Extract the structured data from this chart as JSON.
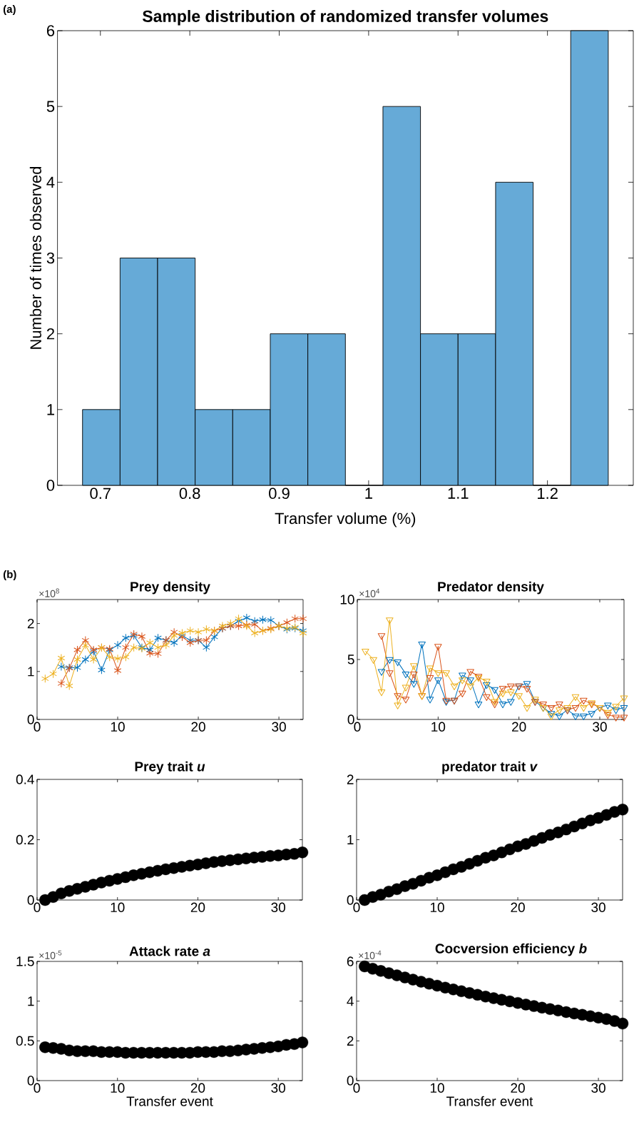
{
  "chart_data": [
    {
      "type": "histogram",
      "title": "Sample distribution of randomized transfer volumes",
      "xlabel": "Transfer volume (%)",
      "ylabel": "Number of times observed",
      "annotations": [
        "(a)"
      ],
      "color": "#66aad7",
      "bins": [
        0.68,
        0.722,
        0.764,
        0.806,
        0.848,
        0.89,
        0.932,
        0.974,
        1.016,
        1.058,
        1.1,
        1.142,
        1.184,
        1.226,
        1.268
      ],
      "values": [
        1,
        3,
        3,
        1,
        1,
        2,
        2,
        0,
        5,
        2,
        2,
        4,
        0,
        6
      ],
      "xlim": [
        0.652,
        1.296
      ],
      "ylim": [
        0,
        6
      ],
      "xticks": [
        0.7,
        0.8,
        0.9,
        1,
        1.1,
        1.2
      ],
      "yticks": [
        0,
        1,
        2,
        3,
        4,
        5,
        6
      ]
    },
    {
      "type": "line",
      "title": "Prey density",
      "annotations": [
        "(b)",
        "×10$^{8}$"
      ],
      "marker": "cross",
      "xlim": [
        0,
        33
      ],
      "ylim": [
        0,
        2.5
      ],
      "xticks": [
        0,
        10,
        20,
        30
      ],
      "yticks": [
        0,
        1,
        2
      ],
      "series": [
        {
          "color": "#0072bd",
          "x": [
            3,
            4,
            5,
            6,
            7,
            8,
            9,
            10,
            11,
            12,
            13,
            14,
            15,
            16,
            17,
            18,
            19,
            20,
            21,
            22,
            23,
            24,
            25,
            26,
            27,
            28,
            29,
            30,
            31,
            32,
            33
          ],
          "values": [
            1.1,
            1.08,
            1.08,
            1.25,
            1.42,
            1.03,
            1.45,
            1.55,
            1.7,
            1.75,
            1.5,
            1.45,
            1.7,
            1.65,
            1.6,
            1.75,
            1.65,
            1.65,
            1.5,
            1.72,
            1.9,
            1.95,
            2.05,
            2.12,
            2.05,
            2.08,
            2.07,
            1.95,
            1.88,
            1.9,
            1.85
          ]
        },
        {
          "color": "#d95319",
          "x": [
            3,
            4,
            5,
            6,
            7,
            8,
            9,
            10,
            11,
            12,
            13,
            14,
            15,
            16,
            17,
            18,
            19,
            20,
            21,
            22,
            23,
            24,
            25,
            26,
            27,
            28,
            29,
            30,
            31,
            32,
            33
          ],
          "values": [
            0.75,
            1.07,
            1.45,
            1.65,
            1.45,
            1.5,
            1.47,
            1.02,
            1.5,
            1.78,
            1.73,
            1.38,
            1.37,
            1.65,
            1.82,
            1.72,
            1.6,
            1.65,
            1.65,
            1.85,
            1.9,
            1.95,
            1.95,
            1.97,
            1.98,
            1.85,
            1.9,
            1.95,
            2.02,
            2.1,
            2.1
          ]
        },
        {
          "color": "#edb120",
          "x": [
            1,
            2,
            3,
            4,
            5,
            6,
            7,
            8,
            9,
            10,
            11,
            12,
            13,
            14,
            15,
            16,
            17,
            18,
            19,
            20,
            21,
            22,
            23,
            24,
            25,
            26,
            27,
            28,
            29,
            30,
            31,
            32,
            33
          ],
          "values": [
            0.85,
            0.95,
            1.28,
            0.7,
            1.25,
            1.55,
            1.25,
            1.5,
            1.3,
            1.27,
            1.3,
            1.5,
            1.48,
            1.6,
            1.5,
            1.55,
            1.75,
            1.8,
            1.85,
            1.82,
            1.88,
            1.85,
            1.95,
            2.0,
            2.1,
            1.95,
            1.8,
            1.85,
            1.88,
            1.95,
            1.9,
            1.92,
            1.8
          ]
        }
      ]
    },
    {
      "type": "line",
      "title": "Predator density",
      "annotations": [
        "×10$^{4}$"
      ],
      "marker": "triangle",
      "xlim": [
        0,
        33
      ],
      "ylim": [
        0,
        10
      ],
      "xticks": [
        0,
        10,
        20,
        30
      ],
      "yticks": [
        0,
        5,
        10
      ],
      "series": [
        {
          "color": "#0072bd",
          "x": [
            3,
            4,
            5,
            6,
            7,
            8,
            9,
            10,
            11,
            12,
            13,
            14,
            15,
            16,
            17,
            18,
            19,
            20,
            21,
            22,
            23,
            24,
            25,
            26,
            27,
            28,
            29,
            30,
            31,
            32,
            33
          ],
          "values": [
            4.0,
            5.0,
            4.8,
            3.8,
            3.0,
            6.3,
            1.7,
            3.3,
            1.5,
            1.6,
            3.7,
            3.3,
            1.3,
            2.9,
            2.5,
            1.3,
            1.5,
            2.8,
            3.0,
            1.5,
            1.0,
            0.5,
            0.3,
            0.8,
            0.3,
            0.3,
            0.5,
            1.0,
            1.2,
            0.8,
            1.0
          ]
        },
        {
          "color": "#d95319",
          "x": [
            3,
            4,
            5,
            6,
            7,
            8,
            9,
            10,
            11,
            12,
            13,
            14,
            15,
            16,
            17,
            18,
            19,
            20,
            21,
            22,
            23,
            24,
            25,
            26,
            27,
            28,
            29,
            30,
            31,
            32,
            33
          ],
          "values": [
            7.0,
            3.9,
            2.0,
            1.7,
            3.8,
            2.0,
            3.5,
            6.1,
            1.6,
            1.6,
            2.2,
            4.0,
            3.6,
            1.9,
            1.3,
            2.6,
            2.8,
            2.8,
            2.6,
            1.5,
            1.3,
            1.0,
            1.3,
            0.8,
            1.0,
            1.6,
            1.3,
            1.0,
            0.4,
            0.2,
            0.2
          ]
        },
        {
          "color": "#edb120",
          "x": [
            1,
            2,
            3,
            4,
            5,
            6,
            7,
            8,
            9,
            10,
            11,
            12,
            13,
            14,
            15,
            16,
            17,
            18,
            19,
            20,
            21,
            22,
            23,
            24,
            25,
            26,
            27,
            28,
            29,
            30,
            31,
            32,
            33
          ],
          "values": [
            5.7,
            5.0,
            2.3,
            8.3,
            1.2,
            2.7,
            4.5,
            2.0,
            4.3,
            3.9,
            3.9,
            2.8,
            3.3,
            2.8,
            3.5,
            3.2,
            1.5,
            2.2,
            2.3,
            2.0,
            1.0,
            1.7,
            1.0,
            0.3,
            0.8,
            1.0,
            1.9,
            1.0,
            1.4,
            1.0,
            0.6,
            1.1,
            1.8
          ]
        }
      ]
    },
    {
      "type": "scatter",
      "title": "Prey trait *u*",
      "marker": "circle",
      "color": "#000000",
      "xlim": [
        0,
        33
      ],
      "ylim": [
        0,
        0.4
      ],
      "xticks": [
        0,
        10,
        20,
        30
      ],
      "yticks": [
        0,
        0.2,
        0.4
      ],
      "x": [
        1,
        2,
        3,
        4,
        5,
        6,
        7,
        8,
        9,
        10,
        11,
        12,
        13,
        14,
        15,
        16,
        17,
        18,
        19,
        20,
        21,
        22,
        23,
        24,
        25,
        26,
        27,
        28,
        29,
        30,
        31,
        32,
        33
      ],
      "values": [
        0.0,
        0.01,
        0.022,
        0.03,
        0.037,
        0.044,
        0.051,
        0.058,
        0.064,
        0.07,
        0.076,
        0.082,
        0.087,
        0.092,
        0.097,
        0.102,
        0.106,
        0.11,
        0.114,
        0.118,
        0.122,
        0.126,
        0.129,
        0.132,
        0.135,
        0.138,
        0.141,
        0.143,
        0.146,
        0.148,
        0.151,
        0.153,
        0.158
      ]
    },
    {
      "type": "scatter",
      "title": "predator trait *v*",
      "marker": "circle",
      "color": "#000000",
      "xlim": [
        0,
        33
      ],
      "ylim": [
        0,
        2
      ],
      "xticks": [
        0,
        10,
        20,
        30
      ],
      "yticks": [
        0,
        1,
        2
      ],
      "x": [
        1,
        2,
        3,
        4,
        5,
        6,
        7,
        8,
        9,
        10,
        11,
        12,
        13,
        14,
        15,
        16,
        17,
        18,
        19,
        20,
        21,
        22,
        23,
        24,
        25,
        26,
        27,
        28,
        29,
        30,
        31,
        32,
        33
      ],
      "values": [
        0,
        0.05,
        0.09,
        0.14,
        0.18,
        0.23,
        0.27,
        0.32,
        0.37,
        0.41,
        0.46,
        0.51,
        0.55,
        0.6,
        0.65,
        0.7,
        0.74,
        0.79,
        0.84,
        0.89,
        0.93,
        0.98,
        1.03,
        1.08,
        1.12,
        1.17,
        1.22,
        1.27,
        1.32,
        1.36,
        1.41,
        1.46,
        1.5
      ]
    },
    {
      "type": "scatter",
      "title": "Attack rate *a*",
      "xlabel": "Transfer event",
      "annotations": [
        "×10$^{-5}$"
      ],
      "marker": "circle",
      "color": "#000000",
      "xlim": [
        0,
        33
      ],
      "ylim": [
        0,
        1.5
      ],
      "xticks": [
        0,
        10,
        20,
        30
      ],
      "yticks": [
        0,
        0.5,
        1,
        1.5
      ],
      "x": [
        1,
        2,
        3,
        4,
        5,
        6,
        7,
        8,
        9,
        10,
        11,
        12,
        13,
        14,
        15,
        16,
        17,
        18,
        19,
        20,
        21,
        22,
        23,
        24,
        25,
        26,
        27,
        28,
        29,
        30,
        31,
        32,
        33
      ],
      "values": [
        0.42,
        0.41,
        0.4,
        0.38,
        0.37,
        0.37,
        0.37,
        0.36,
        0.36,
        0.36,
        0.35,
        0.35,
        0.35,
        0.35,
        0.35,
        0.35,
        0.35,
        0.35,
        0.35,
        0.36,
        0.36,
        0.36,
        0.37,
        0.37,
        0.38,
        0.39,
        0.4,
        0.41,
        0.42,
        0.43,
        0.45,
        0.46,
        0.48
      ]
    },
    {
      "type": "scatter",
      "title": "Cocversion efficiency *b*",
      "xlabel": "Transfer event",
      "annotations": [
        "×10$^{-4}$"
      ],
      "marker": "circle",
      "color": "#000000",
      "xlim": [
        0,
        33
      ],
      "ylim": [
        0,
        6
      ],
      "xticks": [
        0,
        10,
        20,
        30
      ],
      "yticks": [
        0,
        2,
        4,
        6
      ],
      "x": [
        1,
        2,
        3,
        4,
        5,
        6,
        7,
        8,
        9,
        10,
        11,
        12,
        13,
        14,
        15,
        16,
        17,
        18,
        19,
        20,
        21,
        22,
        23,
        24,
        25,
        26,
        27,
        28,
        29,
        30,
        31,
        32,
        33
      ],
      "values": [
        5.75,
        5.63,
        5.52,
        5.41,
        5.3,
        5.19,
        5.08,
        4.98,
        4.88,
        4.78,
        4.68,
        4.59,
        4.5,
        4.41,
        4.32,
        4.23,
        4.15,
        4.07,
        3.99,
        3.91,
        3.83,
        3.75,
        3.67,
        3.6,
        3.53,
        3.45,
        3.38,
        3.31,
        3.24,
        3.17,
        3.1,
        3.0,
        2.87
      ]
    }
  ]
}
